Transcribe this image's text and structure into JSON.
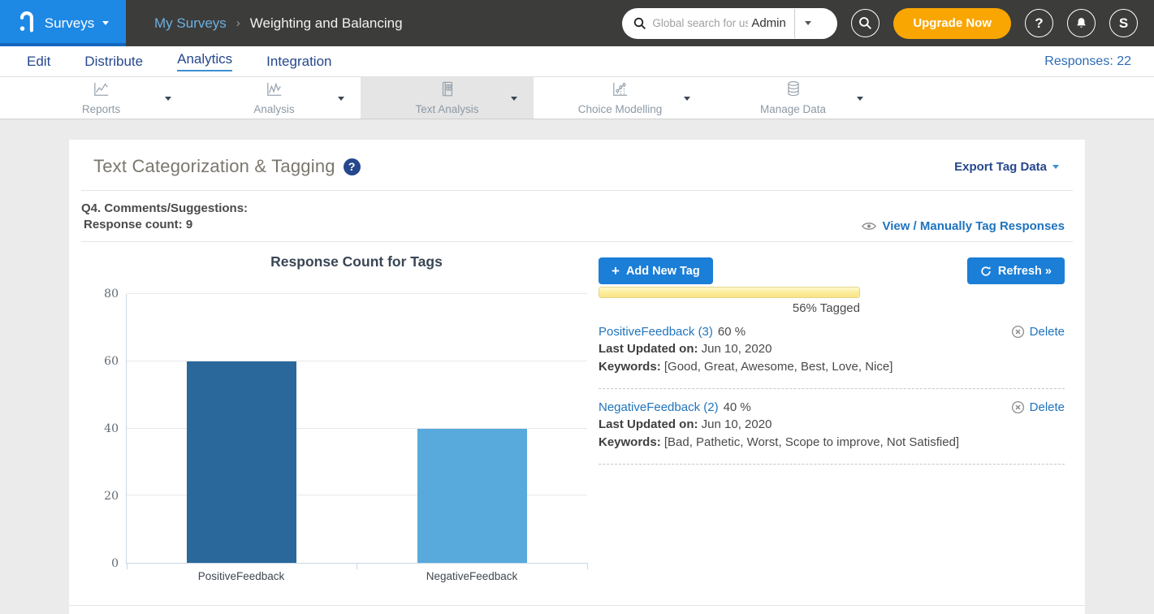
{
  "header": {
    "product": "Surveys",
    "breadcrumb": {
      "parent": "My Surveys",
      "separator": "›",
      "current": "Weighting and Balancing"
    },
    "search_placeholder": "Global search for user",
    "search_scope": "Admin",
    "upgrade_label": "Upgrade Now",
    "help_label": "?",
    "avatar_initial": "S"
  },
  "nav": {
    "items": [
      {
        "label": "Edit"
      },
      {
        "label": "Distribute"
      },
      {
        "label": "Analytics"
      },
      {
        "label": "Integration"
      }
    ],
    "responses_label": "Responses: 22"
  },
  "tabs": [
    {
      "label": "Reports",
      "icon": "line-chart-icon",
      "active": false
    },
    {
      "label": "Analysis",
      "icon": "area-chart-icon",
      "active": false
    },
    {
      "label": "Text Analysis",
      "icon": "document-grid-icon",
      "active": true
    },
    {
      "label": "Choice Modelling",
      "icon": "scatter-chart-icon",
      "active": false
    },
    {
      "label": "Manage Data",
      "icon": "database-icon",
      "active": false
    }
  ],
  "panel": {
    "title": "Text Categorization & Tagging",
    "help_badge": "?",
    "export_label": "Export Tag Data",
    "question_label": "Q4. Comments/Suggestions:",
    "response_count_label": "Response count: 9",
    "view_link_label": "View / Manually Tag Responses",
    "add_tag_label": "Add New Tag",
    "refresh_label": "Refresh »",
    "tagged_percent": 56,
    "tagged_label": "56% Tagged",
    "tags": [
      {
        "name": "PositiveFeedback (3)",
        "percent": "60 %",
        "updated_label": "Last Updated on:",
        "updated_value": " Jun 10, 2020",
        "keywords_label": "Keywords:",
        "keywords_value": " [Good, Great, Awesome, Best, Love, Nice]",
        "delete_label": "Delete"
      },
      {
        "name": "NegativeFeedback (2)",
        "percent": "40 %",
        "updated_label": "Last Updated on:",
        "updated_value": " Jun 10, 2020",
        "keywords_label": "Keywords:",
        "keywords_value": " [Bad, Pathetic, Worst, Scope to improve, Not Satisfied]",
        "delete_label": "Delete"
      }
    ]
  },
  "chart_data": {
    "type": "bar",
    "title": "Response Count for Tags",
    "categories": [
      "PositiveFeedback",
      "NegativeFeedback"
    ],
    "values": [
      60,
      40
    ],
    "bar_colors": [
      "#2a689b",
      "#57aadb"
    ],
    "xlabel": "",
    "ylabel": "",
    "ylim": [
      0,
      80
    ],
    "yticks": [
      0,
      20,
      40,
      60,
      80
    ],
    "grid": true,
    "legend": "none"
  },
  "colors": {
    "brand_blue": "#1e88e5",
    "header_bg": "#3c3c3b",
    "accent_orange": "#f9a602",
    "nav_navy": "#26478d",
    "link_blue": "#1e73be",
    "button_blue": "#1b7ed7",
    "bar_dark_blue": "#2a689b",
    "bar_light_blue": "#57aadb",
    "progress_yellow": "#fae487",
    "active_tab_bg": "#e5e5e5"
  }
}
